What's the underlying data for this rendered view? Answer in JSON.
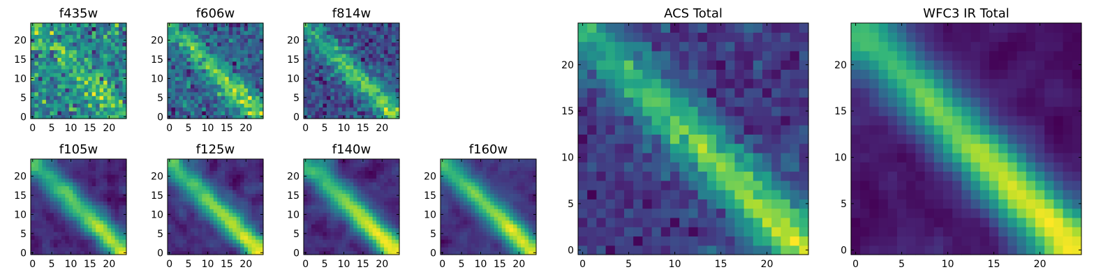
{
  "chart_data": [
    {
      "type": "heatmap",
      "title": "f435w",
      "xlim": [
        0,
        24
      ],
      "ylim": [
        0,
        24
      ],
      "xticks": [
        "0",
        "5",
        "10",
        "15",
        "20"
      ],
      "yticks": [
        "0",
        "5",
        "10",
        "15",
        "20"
      ],
      "colormap": "viridis",
      "ridge_strength": 0.35,
      "noise": 0.9,
      "seed": 11,
      "blur": 0
    },
    {
      "type": "heatmap",
      "title": "f606w",
      "xlim": [
        0,
        24
      ],
      "ylim": [
        0,
        24
      ],
      "xticks": [
        "0",
        "5",
        "10",
        "15",
        "20"
      ],
      "yticks": [
        "0",
        "5",
        "10",
        "15",
        "20"
      ],
      "colormap": "viridis",
      "ridge_strength": 0.7,
      "noise": 0.75,
      "seed": 23,
      "blur": 0
    },
    {
      "type": "heatmap",
      "title": "f814w",
      "xlim": [
        0,
        24
      ],
      "ylim": [
        0,
        24
      ],
      "xticks": [
        "0",
        "5",
        "10",
        "15",
        "20"
      ],
      "yticks": [
        "0",
        "5",
        "10",
        "15",
        "20"
      ],
      "colormap": "viridis",
      "ridge_strength": 0.8,
      "noise": 0.7,
      "seed": 37,
      "blur": 0
    },
    {
      "type": "heatmap",
      "title": "f105w",
      "xlim": [
        0,
        24
      ],
      "ylim": [
        0,
        24
      ],
      "xticks": [
        "0",
        "5",
        "10",
        "15",
        "20"
      ],
      "yticks": [
        "0",
        "5",
        "10",
        "15",
        "20"
      ],
      "colormap": "viridis",
      "ridge_strength": 0.8,
      "noise": 0.55,
      "seed": 41,
      "blur": 1
    },
    {
      "type": "heatmap",
      "title": "f125w",
      "xlim": [
        0,
        24
      ],
      "ylim": [
        0,
        24
      ],
      "xticks": [
        "0",
        "5",
        "10",
        "15",
        "20"
      ],
      "yticks": [
        "0",
        "5",
        "10",
        "15",
        "20"
      ],
      "colormap": "viridis",
      "ridge_strength": 0.75,
      "noise": 0.55,
      "seed": 53,
      "blur": 1
    },
    {
      "type": "heatmap",
      "title": "f140w",
      "xlim": [
        0,
        24
      ],
      "ylim": [
        0,
        24
      ],
      "xticks": [
        "0",
        "5",
        "10",
        "15",
        "20"
      ],
      "yticks": [
        "0",
        "5",
        "10",
        "15",
        "20"
      ],
      "colormap": "viridis",
      "ridge_strength": 0.85,
      "noise": 0.5,
      "seed": 67,
      "blur": 1
    },
    {
      "type": "heatmap",
      "title": "f160w",
      "xlim": [
        0,
        24
      ],
      "ylim": [
        0,
        24
      ],
      "xticks": [
        "0",
        "5",
        "10",
        "15",
        "20"
      ],
      "yticks": [
        "0",
        "5",
        "10",
        "15",
        "20"
      ],
      "colormap": "viridis",
      "ridge_strength": 0.95,
      "noise": 0.5,
      "seed": 79,
      "blur": 1
    },
    {
      "type": "heatmap",
      "title": "ACS Total",
      "xlim": [
        0,
        24
      ],
      "ylim": [
        0,
        24
      ],
      "xticks": [
        "0",
        "5",
        "10",
        "15",
        "20"
      ],
      "yticks": [
        "0",
        "5",
        "10",
        "15",
        "20"
      ],
      "colormap": "viridis",
      "ridge_strength": 0.9,
      "noise": 0.45,
      "seed": 97,
      "blur": 0
    },
    {
      "type": "heatmap",
      "title": "WFC3 IR Total",
      "xlim": [
        0,
        24
      ],
      "ylim": [
        0,
        24
      ],
      "xticks": [
        "0",
        "5",
        "10",
        "15",
        "20"
      ],
      "yticks": [
        "0",
        "5",
        "10",
        "15",
        "20"
      ],
      "colormap": "viridis",
      "ridge_strength": 1.0,
      "noise": 0.35,
      "seed": 113,
      "blur": 1
    }
  ]
}
